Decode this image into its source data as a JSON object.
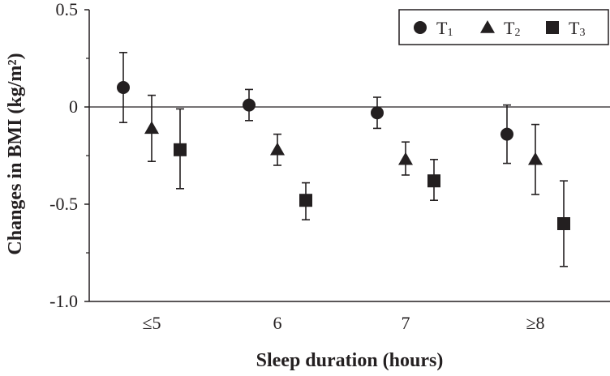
{
  "chart_data": {
    "type": "scatter",
    "xlabel": "Sleep duration (hours)",
    "ylabel": "Changes in BMI (kg/m²)",
    "ylim": [
      -1.0,
      0.5
    ],
    "yticks": [
      "0.5",
      "0",
      "-0.5",
      "-1.0"
    ],
    "ytick_values": [
      0.5,
      0,
      -0.5,
      -1.0
    ],
    "categories": [
      "≤5",
      "6",
      "7",
      "≥8"
    ],
    "reference_line": 0,
    "grid": false,
    "legend_position": "top-right",
    "series": [
      {
        "name": "T1",
        "label_main": "T",
        "label_sub": "1",
        "marker": "circle",
        "values": [
          0.1,
          0.01,
          -0.03,
          -0.14
        ],
        "err_upper": [
          0.28,
          0.09,
          0.05,
          0.01
        ],
        "err_lower": [
          -0.08,
          -0.07,
          -0.11,
          -0.29
        ]
      },
      {
        "name": "T2",
        "label_main": "T",
        "label_sub": "2",
        "marker": "triangle",
        "values": [
          -0.11,
          -0.22,
          -0.27,
          -0.27
        ],
        "err_upper": [
          0.06,
          -0.14,
          -0.18,
          -0.09
        ],
        "err_lower": [
          -0.28,
          -0.3,
          -0.35,
          -0.45
        ]
      },
      {
        "name": "T3",
        "label_main": "T",
        "label_sub": "3",
        "marker": "square",
        "values": [
          -0.22,
          -0.48,
          -0.38,
          -0.6
        ],
        "err_upper": [
          -0.01,
          -0.39,
          -0.27,
          -0.38
        ],
        "err_lower": [
          -0.42,
          -0.58,
          -0.48,
          -0.82
        ]
      }
    ],
    "colors": {
      "ink": "#231f20"
    }
  }
}
